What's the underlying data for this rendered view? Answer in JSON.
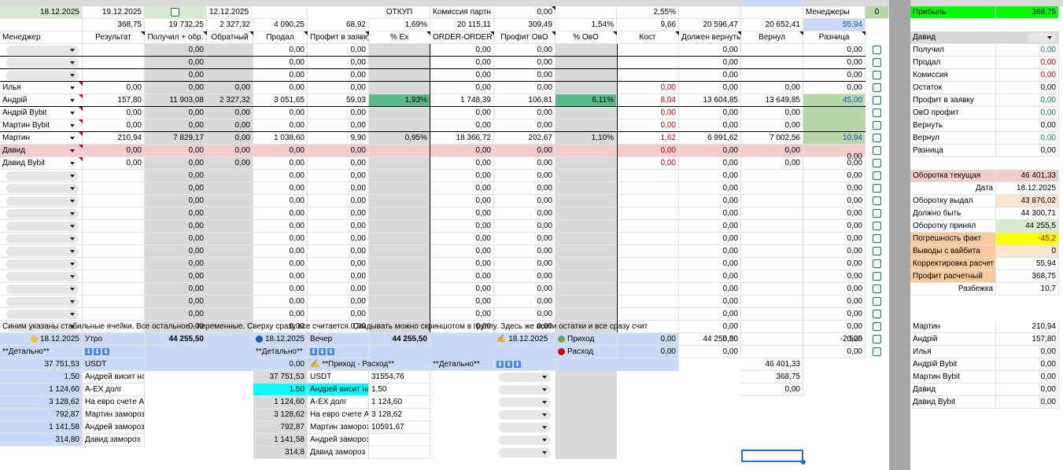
{
  "row1": {
    "date_a": "18.12.2025",
    "date_b": "19.12.2025",
    "date_c": "12.12.2025",
    "otkup": "ОТКУП",
    "commission_label": "Комиссия партн",
    "commission_value": "0,00",
    "pct": "2,55%",
    "managers_label": "Менеджеры",
    "managers_value": "0",
    "profit_label": "Прибыль",
    "profit_value": "368,75"
  },
  "totals": [
    "368,75",
    "19 732,25",
    "2 327,32",
    "4 090,25",
    "68,92",
    "1,69%",
    "20 115,11",
    "309,49",
    "1,54%",
    "9,66",
    "20 596,47",
    "20 652,41",
    "55,94"
  ],
  "headers": [
    "Менеджер",
    "Результат",
    "Получил + обр.",
    "Обратный",
    "Продал",
    "Профит в заявку",
    "% Ex",
    "ORDER-ORDER",
    "Профит ОвО",
    "% ОвО",
    "Кост",
    "Должен вернуть",
    "Вернул",
    "Разница"
  ],
  "zero": "0,00",
  "named_rows": [
    {
      "name": "Илья",
      "vals": [
        "0,00",
        "0,00",
        "0,00",
        "0,00",
        "0,00",
        "",
        "0,00",
        "0,00",
        "",
        "0,00",
        "0,00",
        "0,00",
        "0,00"
      ]
    },
    {
      "name": "Андрій",
      "vals": [
        "157,80",
        "11 903,08",
        "2 327,32",
        "3 051,65",
        "59,03",
        "1,93%",
        "1 748,39",
        "106,81",
        "6,11%",
        "8,04",
        "13 604,85",
        "13 649,85",
        "45,00"
      ]
    },
    {
      "name": "Андрій Bybit",
      "vals": [
        "0,00",
        "0,00",
        "0,00",
        "0,00",
        "0,00",
        "",
        "0,00",
        "0,00",
        "",
        "0,00",
        "0,00",
        "0,00",
        ""
      ]
    },
    {
      "name": "Мартин Bybit",
      "vals": [
        "0,00",
        "0,00",
        "0,00",
        "0,00",
        "0,00",
        "",
        "0,00",
        "0,00",
        "",
        "0,00",
        "0,00",
        "0,00",
        ""
      ]
    },
    {
      "name": "Мартин",
      "vals": [
        "210,94",
        "7 829,17",
        "0,00",
        "1 038,60",
        "9,90",
        "0,95%",
        "18 366,72",
        "202,67",
        "1,10%",
        "1,62",
        "6 991,62",
        "7 002,56",
        "10,94"
      ]
    },
    {
      "name": "Давид",
      "vals": [
        "0,00",
        "0,00",
        "0,00",
        "0,00",
        "0,00",
        "",
        "0,00",
        "0,00",
        "",
        "0,00",
        "0,00",
        "0,00",
        ""
      ]
    },
    {
      "name": "Давид Bybit",
      "vals": [
        "0,00",
        "0,00",
        "0,00",
        "0,00",
        "0,00",
        "",
        "0,00",
        "0,00",
        "",
        "0,00",
        "0,00",
        "0,00",
        "0,00"
      ]
    }
  ],
  "david_diff": "0,00",
  "note": "Синим указаны стабильные ячейки. Все остальное - переменные. Сверху сразу все считается. Скидывать можно скриншотом в группу. Здесь же всети остатки и все сразу счит",
  "side": {
    "selected": "Давид",
    "rows": [
      {
        "label": "Получил",
        "value": "0,00",
        "color": "g"
      },
      {
        "label": "Продал",
        "value": "0,00",
        "color": "r"
      },
      {
        "label": "Комиссия",
        "value": "0,00",
        "color": "r"
      },
      {
        "label": "Остаток",
        "value": "0,00",
        "color": "k"
      },
      {
        "label": "Профит в заявку",
        "value": "0,00",
        "color": "g"
      },
      {
        "label": "ОвО профит",
        "value": "0,00",
        "color": "g"
      },
      {
        "label": "Вернуть",
        "value": "0,00",
        "color": "k"
      },
      {
        "label": "Вернул",
        "value": "0,00",
        "color": "g"
      },
      {
        "label": "Разница",
        "value": "0,00",
        "color": "k"
      }
    ],
    "turnover": [
      {
        "label": "Оборотка текущая",
        "value": "46 401,33",
        "lbg": "pink",
        "vbg": "pink"
      },
      {
        "label": "Дата",
        "value": "18.12.2025",
        "lbg": "",
        "vbg": ""
      },
      {
        "label": "Оборотку выдал",
        "value": "43 876,02",
        "lbg": "",
        "vbg": "orange"
      },
      {
        "label": "Должно быть",
        "value": "44 300,71",
        "lbg": "",
        "vbg": ""
      },
      {
        "label": "Оборотку принял",
        "value": "44 255,5",
        "lbg": "",
        "vbg": "lgreen"
      },
      {
        "label": "Погрешность факт",
        "value": "-45,2",
        "lbg": "peach",
        "vbg": "yellow"
      },
      {
        "label": "Выводы с вайбита",
        "value": "0",
        "lbg": "peach",
        "vbg": "orange"
      },
      {
        "label": "Корректировка расчет",
        "value": "55,94",
        "lbg": "peach",
        "vbg": ""
      },
      {
        "label": "Профит расчетный",
        "value": "368,75",
        "lbg": "peach",
        "vbg": ""
      },
      {
        "label": "Разбежка",
        "value": "10,7",
        "lbg": "",
        "vbg": ""
      }
    ],
    "managers": [
      {
        "label": "Мартин",
        "value": "210,94"
      },
      {
        "label": "Андрій",
        "value": "157,80"
      },
      {
        "label": "Илья",
        "value": "0,00"
      },
      {
        "label": "Андрій Bybit",
        "value": "0,00"
      },
      {
        "label": "Мартин Bybit",
        "value": "0,00"
      },
      {
        "label": "Давид",
        "value": "0,00"
      },
      {
        "label": "Давид Bybit",
        "value": "0,00"
      }
    ]
  },
  "bottom": {
    "morning_date": "18.12.2025",
    "morning_label": "Утро",
    "morning_value": "44 255,50",
    "evening_date": "18.12.2025",
    "evening_label": "Вечер",
    "evening_value": "44 255,50",
    "third_date": "18.12.2025",
    "income_label": "Приход",
    "income_value": "0,00",
    "income_value2": "44 255,50",
    "expense_label": "Расход",
    "expense_value": "0,00",
    "detail": "**Детально**",
    "income_expense": "**Приход - Расход**",
    "neg": "-2 525",
    "extra1": "46 401,33",
    "extra2": "368,75",
    "extra3": "0,00",
    "left_rows": [
      {
        "v": "37 751,53",
        "l": "USDT"
      },
      {
        "v": "1,50",
        "l": "Андрей висит на ББ"
      },
      {
        "v": "1 124,60",
        "l": "A-EX долг"
      },
      {
        "v": "3 128,62",
        "l": "На евро счете Арсения"
      },
      {
        "v": "792,87",
        "l": "Мартин замороз ГБП"
      },
      {
        "v": "1 141,58",
        "l": "Андрей замороз"
      },
      {
        "v": "314,80",
        "l": "Давид замороз"
      }
    ],
    "mid_header_v": "0,00",
    "mid_rows": [
      {
        "v": "37 751,53",
        "l": "USDT",
        "x": "31554,76"
      },
      {
        "v": "1,50",
        "l": "Андрей висит на",
        "x": "1,50"
      },
      {
        "v": "1 124,60",
        "l": "A-EX долг",
        "x": "1 124,60"
      },
      {
        "v": "3 128,62",
        "l": "На евро счете А",
        "x": "3 128,62"
      },
      {
        "v": "792,87",
        "l": "Мартин замороз",
        "x": "10591,67"
      },
      {
        "v": "1 141,58",
        "l": "Андрей замороз",
        "x": ""
      },
      {
        "v": "314,8",
        "l": "Давид замороз",
        "x": ""
      }
    ]
  }
}
